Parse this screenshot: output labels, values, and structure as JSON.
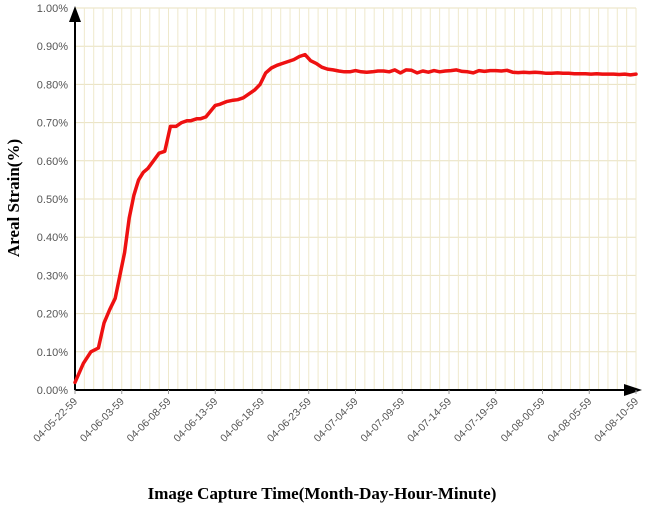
{
  "chart_data": {
    "type": "line",
    "xlabel": "Image Capture Time(Month-Day-Hour-Minute)",
    "ylabel": "Areal Strain(%)",
    "ylim": [
      0,
      1.0
    ],
    "yticks": [
      "0.00%",
      "0.10%",
      "0.20%",
      "0.30%",
      "0.40%",
      "0.50%",
      "0.60%",
      "0.70%",
      "0.80%",
      "0.90%",
      "1.00%"
    ],
    "xticks": [
      "04-05-22-59",
      "04-06-03-59",
      "04-06-08-59",
      "04-06-13-59",
      "04-06-18-59",
      "04-06-23-59",
      "04-07-04-59",
      "04-07-09-59",
      "04-07-14-59",
      "04-07-19-59",
      "04-08-00-59",
      "04-08-05-59",
      "04-08-10-59"
    ],
    "grid": true,
    "line_color": "#ee1111",
    "series": [
      {
        "x": [
          0.0,
          0.9,
          1.7,
          2.5,
          3.1,
          3.7,
          4.3,
          4.8,
          5.3,
          5.8,
          6.3,
          6.8,
          7.3,
          7.8,
          8.4,
          9.0,
          9.6,
          10.2,
          10.8,
          11.4,
          12.0,
          12.4,
          13.0,
          13.4,
          14.0,
          14.5,
          15.0,
          15.5,
          16.2,
          16.8,
          17.4,
          18.0,
          18.6,
          19.2,
          19.8,
          20.4,
          21.0,
          21.6,
          22.2,
          22.8,
          23.4,
          24.0,
          24.6,
          25.2,
          25.8,
          26.4,
          27.0,
          27.6,
          28.2,
          28.8,
          29.4,
          30.0,
          30.6,
          31.2,
          31.8,
          32.4,
          33.0,
          33.6,
          34.2,
          34.8,
          35.4,
          36.0,
          36.6,
          37.2,
          37.8,
          38.4,
          39.0,
          39.6,
          40.2,
          40.8,
          41.4,
          42.0,
          42.6,
          43.2,
          43.8,
          44.4,
          45.0,
          45.6,
          46.2,
          46.8,
          47.4,
          48.0,
          48.6,
          49.2,
          49.8,
          50.4,
          51.0,
          51.6,
          52.2,
          52.8,
          53.4,
          54.0,
          54.6,
          55.2,
          55.8,
          56.4,
          57.0,
          57.6,
          58.2,
          58.8,
          59.4,
          60.0
        ],
        "values": [
          0.02,
          0.07,
          0.1,
          0.11,
          0.175,
          0.21,
          0.24,
          0.3,
          0.36,
          0.45,
          0.51,
          0.55,
          0.57,
          0.58,
          0.6,
          0.62,
          0.625,
          0.69,
          0.69,
          0.7,
          0.705,
          0.705,
          0.71,
          0.71,
          0.715,
          0.73,
          0.745,
          0.748,
          0.755,
          0.758,
          0.76,
          0.765,
          0.775,
          0.785,
          0.8,
          0.83,
          0.843,
          0.85,
          0.855,
          0.86,
          0.865,
          0.873,
          0.878,
          0.862,
          0.855,
          0.845,
          0.84,
          0.838,
          0.835,
          0.833,
          0.833,
          0.836,
          0.833,
          0.832,
          0.833,
          0.835,
          0.835,
          0.833,
          0.838,
          0.83,
          0.838,
          0.837,
          0.83,
          0.835,
          0.832,
          0.836,
          0.833,
          0.835,
          0.836,
          0.838,
          0.834,
          0.833,
          0.83,
          0.836,
          0.834,
          0.836,
          0.836,
          0.835,
          0.837,
          0.832,
          0.831,
          0.832,
          0.831,
          0.832,
          0.831,
          0.829,
          0.829,
          0.83,
          0.829,
          0.829,
          0.828,
          0.828,
          0.828,
          0.827,
          0.828,
          0.827,
          0.827,
          0.827,
          0.826,
          0.827,
          0.825,
          0.827
        ]
      }
    ]
  }
}
